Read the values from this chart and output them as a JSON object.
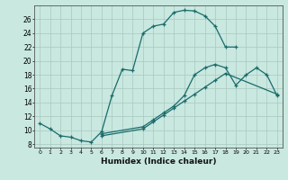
{
  "xlabel": "Humidex (Indice chaleur)",
  "xlim": [
    -0.5,
    23.5
  ],
  "ylim": [
    7.5,
    28
  ],
  "yticks": [
    8,
    10,
    12,
    14,
    16,
    18,
    20,
    22,
    24,
    26
  ],
  "xticks": [
    0,
    1,
    2,
    3,
    4,
    5,
    6,
    7,
    8,
    9,
    10,
    11,
    12,
    13,
    14,
    15,
    16,
    17,
    18,
    19,
    20,
    21,
    22,
    23
  ],
  "bg_color": "#c8e8e0",
  "grid_color": "#a8c8c0",
  "line_color": "#1a6b6b",
  "line1_x": [
    0,
    1,
    2,
    3,
    4,
    5,
    6,
    7,
    8,
    9,
    10,
    11,
    12,
    13,
    14,
    15,
    16,
    17,
    18,
    19
  ],
  "line1_y": [
    11,
    10.2,
    9.2,
    9.0,
    8.5,
    8.3,
    9.8,
    15.0,
    18.8,
    18.6,
    24.0,
    25.0,
    25.3,
    27.0,
    27.3,
    27.2,
    26.5,
    25.0,
    22.0,
    22.0
  ],
  "line2_x": [
    6,
    10,
    11,
    12,
    13,
    14,
    15,
    16,
    17,
    18,
    19,
    20,
    21,
    22,
    23
  ],
  "line2_y": [
    9.5,
    10.5,
    11.5,
    12.5,
    13.5,
    15.0,
    18.0,
    19.0,
    19.5,
    19.0,
    16.5,
    18.0,
    19.0,
    18.0,
    15.0
  ],
  "line3_x": [
    6,
    10,
    11,
    12,
    13,
    14,
    15,
    16,
    17,
    18,
    23
  ],
  "line3_y": [
    9.2,
    10.2,
    11.2,
    12.2,
    13.2,
    14.2,
    15.2,
    16.2,
    17.2,
    18.2,
    15.2
  ]
}
